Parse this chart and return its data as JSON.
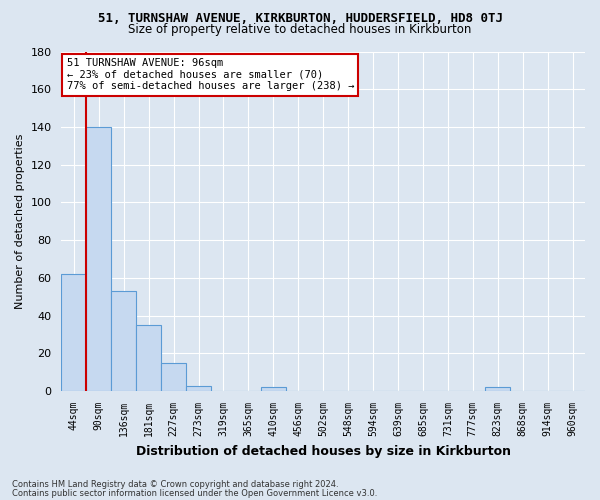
{
  "title_line1": "51, TURNSHAW AVENUE, KIRKBURTON, HUDDERSFIELD, HD8 0TJ",
  "title_line2": "Size of property relative to detached houses in Kirkburton",
  "xlabel": "Distribution of detached houses by size in Kirkburton",
  "ylabel": "Number of detached properties",
  "bin_labels": [
    "44sqm",
    "90sqm",
    "136sqm",
    "181sqm",
    "227sqm",
    "273sqm",
    "319sqm",
    "365sqm",
    "410sqm",
    "456sqm",
    "502sqm",
    "548sqm",
    "594sqm",
    "639sqm",
    "685sqm",
    "731sqm",
    "777sqm",
    "823sqm",
    "868sqm",
    "914sqm",
    "960sqm"
  ],
  "bar_values": [
    62,
    140,
    53,
    35,
    15,
    3,
    0,
    0,
    2,
    0,
    0,
    0,
    0,
    0,
    0,
    0,
    0,
    2,
    0,
    0,
    0
  ],
  "bar_color": "#c6d9f0",
  "bar_edge_color": "#5b9bd5",
  "ylim": [
    0,
    180
  ],
  "yticks": [
    0,
    20,
    40,
    60,
    80,
    100,
    120,
    140,
    160,
    180
  ],
  "property_bin_index": 1,
  "red_line_color": "#cc0000",
  "annotation_text": "51 TURNSHAW AVENUE: 96sqm\n← 23% of detached houses are smaller (70)\n77% of semi-detached houses are larger (238) →",
  "annotation_box_color": "#ffffff",
  "annotation_box_edge_color": "#cc0000",
  "footer_line1": "Contains HM Land Registry data © Crown copyright and database right 2024.",
  "footer_line2": "Contains public sector information licensed under the Open Government Licence v3.0.",
  "bg_color": "#dce6f1",
  "plot_bg_color": "#dce6f1",
  "grid_color": "#ffffff",
  "figsize": [
    6.0,
    5.0
  ],
  "dpi": 100
}
